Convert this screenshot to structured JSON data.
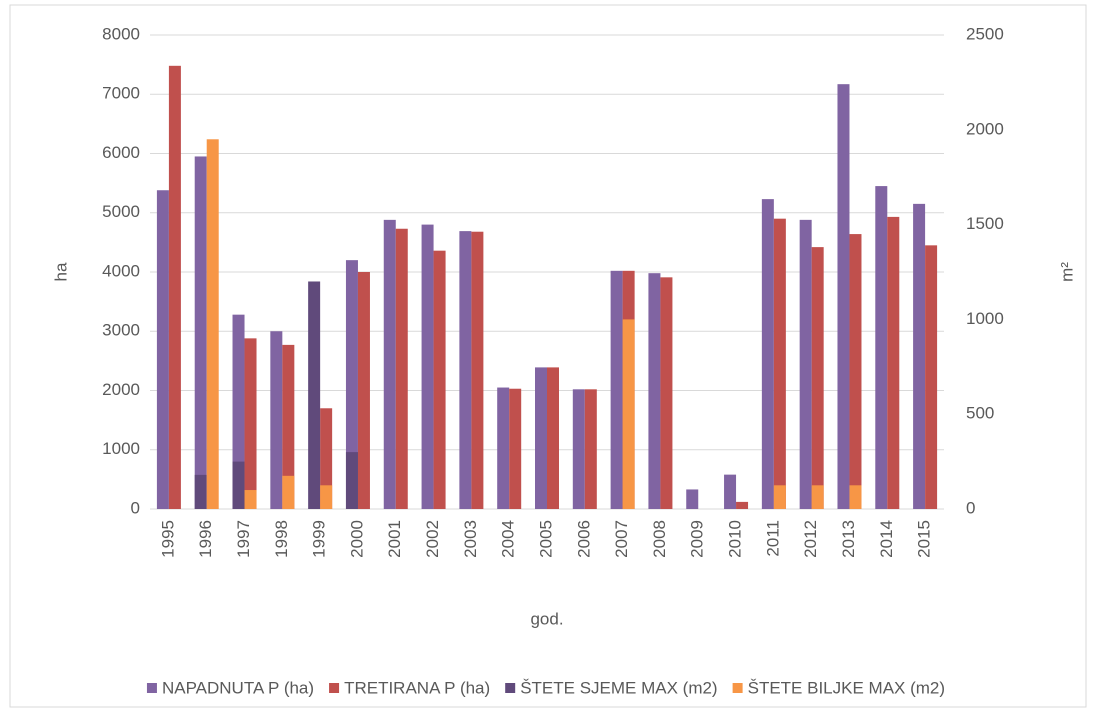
{
  "chart_data": {
    "type": "bar",
    "categories": [
      "1995",
      "1996",
      "1997",
      "1998",
      "1999",
      "2000",
      "2001",
      "2002",
      "2003",
      "2004",
      "2005",
      "2006",
      "2007",
      "2008",
      "2009",
      "2010",
      "2011",
      "2012",
      "2013",
      "2014",
      "2015"
    ],
    "series": [
      {
        "name": "NAPADNUTA P (ha)",
        "color": "#8064a2",
        "values": [
          5380,
          5950,
          3280,
          3000,
          null,
          4200,
          4880,
          4800,
          4690,
          2050,
          2390,
          2020,
          4020,
          3980,
          330,
          580,
          5230,
          4880,
          7170,
          5450,
          5150
        ]
      },
      {
        "name": "TRETIRANA P (ha)",
        "color": "#c0504d",
        "values": [
          7480,
          null,
          2880,
          2770,
          1700,
          4000,
          4730,
          4360,
          4680,
          2030,
          2390,
          2020,
          4020,
          3910,
          null,
          120,
          4900,
          4420,
          4640,
          4930,
          4450
        ]
      },
      {
        "name": "ŠTETE SJEME MAX (m2)",
        "color": "#604a7b",
        "axis": "y2",
        "values": [
          null,
          180,
          250,
          null,
          1200,
          300,
          null,
          null,
          null,
          null,
          null,
          null,
          null,
          null,
          null,
          null,
          null,
          null,
          null,
          null,
          null
        ]
      },
      {
        "name": "ŠTETE BILJKE MAX (m2)",
        "color": "#f79646",
        "axis": "y2",
        "values": [
          null,
          1950,
          100,
          175,
          125,
          null,
          null,
          null,
          null,
          null,
          null,
          null,
          1000,
          null,
          null,
          null,
          125,
          125,
          125,
          null,
          null
        ]
      }
    ],
    "ylabel": "ha",
    "y2label": "m²",
    "xlabel": "god.",
    "ylim": [
      0,
      8000
    ],
    "yticks": [
      0,
      1000,
      2000,
      3000,
      4000,
      5000,
      6000,
      7000,
      8000
    ],
    "y2lim": [
      0,
      2500
    ],
    "y2ticks": [
      0,
      500,
      1000,
      1500,
      2000,
      2500
    ],
    "grid": true,
    "legend": "bottom"
  }
}
